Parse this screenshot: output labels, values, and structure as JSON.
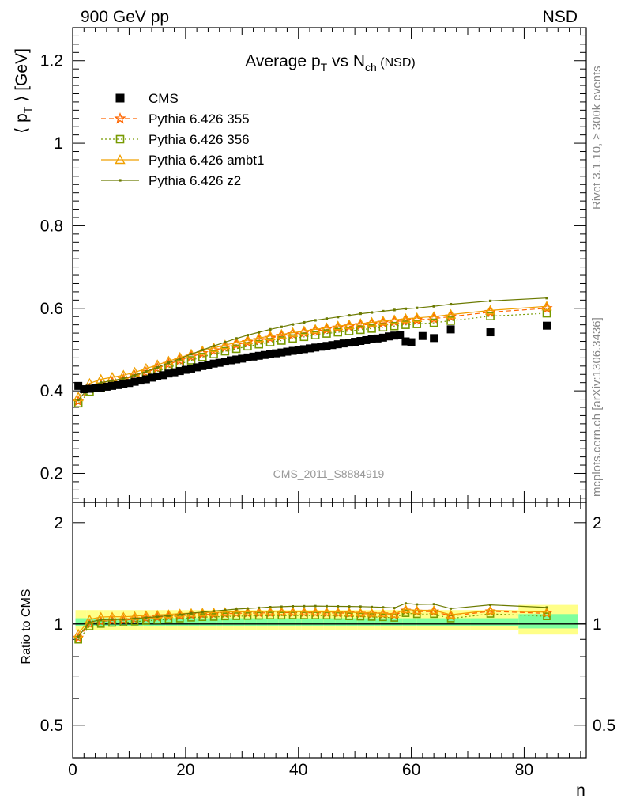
{
  "header": {
    "left": "900 GeV pp",
    "right": "NSD"
  },
  "side_text": {
    "rivet": "Rivet 3.1.10, ≥ 300k events",
    "mcplots": "mcplots.cern.ch [arXiv:1306.3436]"
  },
  "chart_data": {
    "type": "scatter",
    "title": {
      "main": "Average p",
      "sub1": "T",
      "mid": " vs N",
      "sub2": "ch",
      "tail": " (NSD)"
    },
    "ylabel": {
      "pre": "⟨ p",
      "sub": "T",
      "post": " ⟩ [GeV]"
    },
    "ratio_ylabel": "Ratio to CMS",
    "xlabel": "n",
    "analysis": "CMS_2011_S8884919",
    "xlim": [
      0,
      91
    ],
    "ylim": [
      0.13,
      1.28
    ],
    "ratio_ylim": [
      0.4,
      2.3
    ],
    "ratio_log": true,
    "x_ticks": [
      "0",
      "20",
      "40",
      "60",
      "80"
    ],
    "y_ticks": [
      "0.2",
      "0.4",
      "0.6",
      "0.8",
      "1",
      "1.2"
    ],
    "ratio_ticks": [
      "0.5",
      "1",
      "2"
    ],
    "legend_placement": "top-left",
    "colors": {
      "cms": "#000000",
      "s355": "#ff6600",
      "s356": "#779a00",
      "ambt1": "#f0a000",
      "z2": "#6b7a00",
      "band_inner": "#7dff9e",
      "band_outer": "#ffff88"
    },
    "series": [
      {
        "name": "CMS",
        "key": "cms",
        "x": [
          1,
          2,
          3,
          4,
          5,
          6,
          7,
          8,
          9,
          10,
          11,
          12,
          13,
          14,
          15,
          16,
          17,
          18,
          19,
          20,
          21,
          22,
          23,
          24,
          25,
          26,
          27,
          28,
          29,
          30,
          31,
          32,
          33,
          34,
          35,
          36,
          37,
          38,
          39,
          40,
          41,
          42,
          43,
          44,
          45,
          46,
          47,
          48,
          49,
          50,
          51,
          52,
          53,
          54,
          55,
          56,
          57,
          58,
          59,
          60,
          62,
          64,
          67,
          74,
          84
        ],
        "y": [
          0.412,
          0.404,
          0.405,
          0.407,
          0.408,
          0.41,
          0.412,
          0.414,
          0.417,
          0.419,
          0.422,
          0.425,
          0.428,
          0.432,
          0.435,
          0.438,
          0.442,
          0.445,
          0.448,
          0.451,
          0.454,
          0.457,
          0.46,
          0.463,
          0.466,
          0.468,
          0.471,
          0.474,
          0.476,
          0.478,
          0.481,
          0.483,
          0.485,
          0.487,
          0.489,
          0.491,
          0.493,
          0.495,
          0.497,
          0.499,
          0.501,
          0.503,
          0.505,
          0.507,
          0.509,
          0.511,
          0.513,
          0.515,
          0.517,
          0.519,
          0.521,
          0.523,
          0.525,
          0.527,
          0.529,
          0.532,
          0.534,
          0.536,
          0.52,
          0.518,
          0.533,
          0.528,
          0.549,
          0.542,
          0.558
        ]
      },
      {
        "name": "Pythia 6.426 355",
        "key": "s355",
        "x": [
          1,
          3,
          5,
          7,
          9,
          11,
          13,
          15,
          17,
          19,
          21,
          23,
          25,
          27,
          29,
          31,
          33,
          35,
          37,
          39,
          41,
          43,
          45,
          47,
          49,
          51,
          53,
          55,
          57,
          59,
          61,
          64,
          67,
          74,
          84
        ],
        "y": [
          0.375,
          0.405,
          0.415,
          0.422,
          0.428,
          0.436,
          0.445,
          0.455,
          0.465,
          0.474,
          0.483,
          0.491,
          0.498,
          0.505,
          0.512,
          0.518,
          0.523,
          0.528,
          0.533,
          0.537,
          0.541,
          0.545,
          0.549,
          0.553,
          0.556,
          0.559,
          0.562,
          0.565,
          0.568,
          0.57,
          0.572,
          0.575,
          0.58,
          0.591,
          0.6
        ]
      },
      {
        "name": "Pythia 6.426 356",
        "key": "s356",
        "x": [
          1,
          3,
          5,
          7,
          9,
          11,
          13,
          15,
          17,
          19,
          21,
          23,
          25,
          27,
          29,
          31,
          33,
          35,
          37,
          39,
          41,
          43,
          45,
          47,
          49,
          51,
          53,
          55,
          57,
          59,
          61,
          64,
          67,
          74,
          84
        ],
        "y": [
          0.37,
          0.398,
          0.408,
          0.415,
          0.421,
          0.429,
          0.437,
          0.447,
          0.456,
          0.465,
          0.474,
          0.482,
          0.489,
          0.496,
          0.502,
          0.508,
          0.513,
          0.518,
          0.522,
          0.527,
          0.531,
          0.535,
          0.539,
          0.542,
          0.545,
          0.548,
          0.551,
          0.554,
          0.557,
          0.56,
          0.562,
          0.565,
          0.57,
          0.581,
          0.588
        ]
      },
      {
        "name": "Pythia 6.426 ambt1",
        "key": "ambt1",
        "x": [
          1,
          3,
          5,
          7,
          9,
          11,
          13,
          15,
          17,
          19,
          21,
          23,
          25,
          27,
          29,
          31,
          33,
          35,
          37,
          39,
          41,
          43,
          45,
          47,
          49,
          51,
          53,
          55,
          57,
          59,
          61,
          64,
          67,
          74,
          84
        ],
        "y": [
          0.385,
          0.418,
          0.428,
          0.433,
          0.438,
          0.445,
          0.454,
          0.463,
          0.472,
          0.481,
          0.489,
          0.497,
          0.504,
          0.511,
          0.517,
          0.523,
          0.528,
          0.533,
          0.537,
          0.541,
          0.545,
          0.549,
          0.553,
          0.557,
          0.56,
          0.563,
          0.566,
          0.569,
          0.572,
          0.575,
          0.577,
          0.58,
          0.585,
          0.595,
          0.605
        ]
      },
      {
        "name": "Pythia 6.426 z2",
        "key": "z2",
        "x": [
          1,
          3,
          5,
          7,
          9,
          11,
          13,
          15,
          17,
          19,
          21,
          23,
          25,
          27,
          29,
          31,
          33,
          35,
          37,
          39,
          41,
          43,
          45,
          47,
          49,
          51,
          53,
          55,
          57,
          59,
          61,
          64,
          67,
          74,
          84
        ],
        "y": [
          0.378,
          0.41,
          0.42,
          0.425,
          0.43,
          0.438,
          0.447,
          0.457,
          0.468,
          0.478,
          0.489,
          0.499,
          0.509,
          0.518,
          0.527,
          0.535,
          0.542,
          0.549,
          0.555,
          0.561,
          0.566,
          0.571,
          0.575,
          0.579,
          0.583,
          0.587,
          0.59,
          0.593,
          0.596,
          0.599,
          0.601,
          0.605,
          0.61,
          0.618,
          0.625
        ]
      }
    ]
  }
}
